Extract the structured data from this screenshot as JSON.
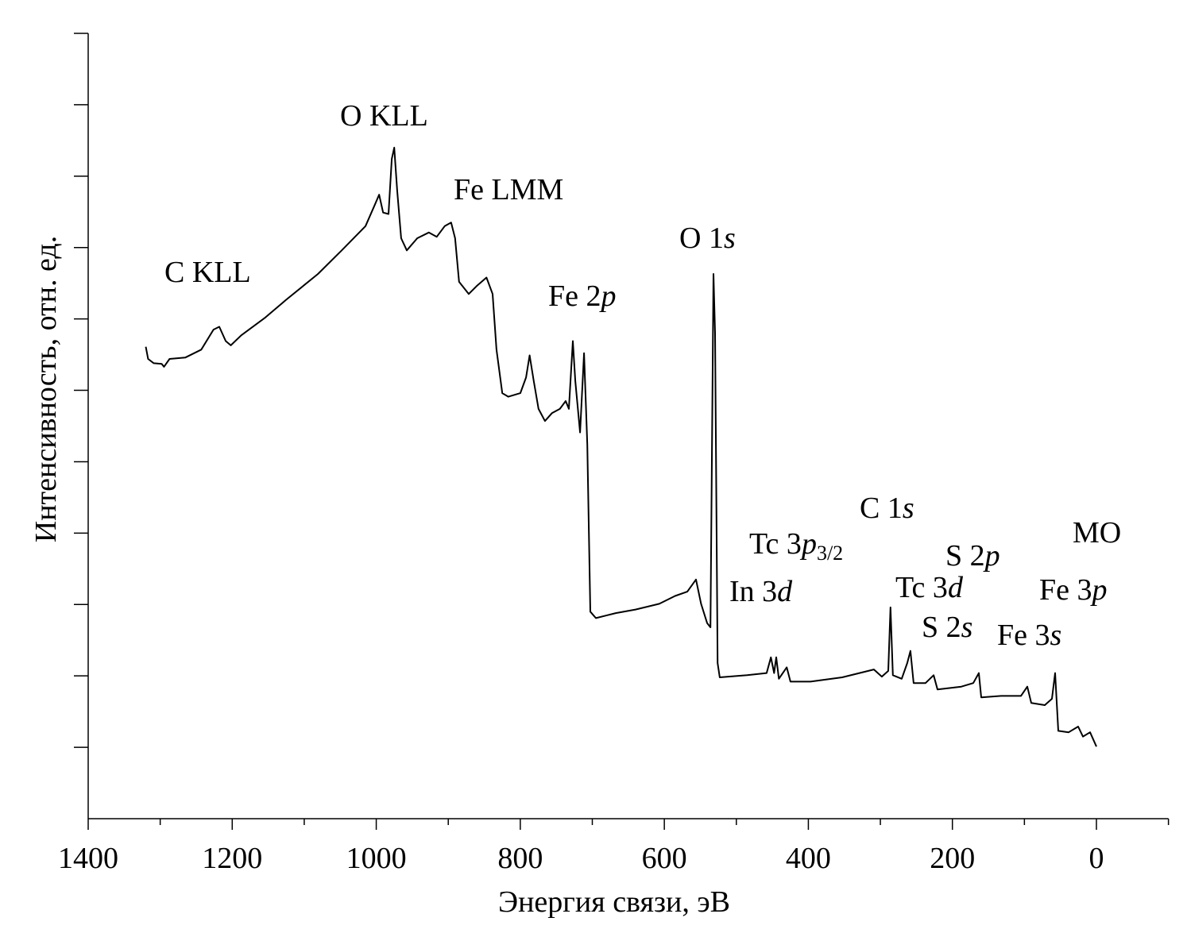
{
  "chart_data": {
    "type": "line",
    "x_label": "Энергия связи, эВ",
    "y_label": "Интенсивность, отн. ед.",
    "xlim": [
      1400,
      -100
    ],
    "xticks": [
      1400,
      1200,
      1000,
      800,
      600,
      400,
      200,
      0
    ],
    "x_minor_ticks": [
      1300,
      1100,
      900,
      700,
      500,
      300,
      100,
      -100
    ],
    "ylim": [
      0,
      11
    ],
    "y_minor_ticks": [
      1,
      2,
      3,
      4,
      5,
      6,
      7,
      8,
      9,
      10,
      11
    ],
    "series": [
      {
        "color": "#000000",
        "x": [
          1320,
          1316.8,
          1309,
          1298,
          1294.7,
          1287,
          1265,
          1243,
          1226,
          1218,
          1209,
          1202,
          1187.5,
          1154,
          1125,
          1081,
          1048,
          1015,
          1002,
          996,
          990.5,
          983,
          978.5,
          975,
          971,
          965.4,
          957.6,
          943,
          927,
          916,
          905,
          896,
          890.5,
          885,
          871.6,
          860.6,
          847,
          838.5,
          833,
          825,
          816.6,
          800,
          792,
          787,
          781.3,
          774.7,
          765.8,
          756,
          745,
          737,
          732.6,
          727,
          723.6,
          717,
          711.5,
          707,
          702.8,
          695,
          667.5,
          640,
          607,
          585,
          568,
          556,
          549,
          540.6,
          536,
          531.8,
          529.6,
          526,
          523,
          485,
          458,
          452,
          447.6,
          444.6,
          441,
          430,
          424.8,
          397,
          353,
          309,
          298,
          289,
          286,
          282.6,
          270.4,
          262.7,
          258.3,
          253.8,
          237.3,
          226,
          220.7,
          187.6,
          171,
          163.3,
          160,
          132.4,
          104.8,
          96,
          90.5,
          71.7,
          61.8,
          57.4,
          53,
          38.6,
          25.4,
          18.8,
          8.8,
          0
        ],
        "values": [
          6.61,
          6.44,
          6.38,
          6.37,
          6.33,
          6.44,
          6.46,
          6.57,
          6.85,
          6.89,
          6.69,
          6.63,
          6.77,
          7.02,
          7.27,
          7.63,
          7.96,
          8.3,
          8.6,
          8.74,
          8.49,
          8.47,
          9.24,
          9.4,
          8.8,
          8.13,
          7.96,
          8.13,
          8.21,
          8.15,
          8.3,
          8.35,
          8.13,
          7.52,
          7.35,
          7.46,
          7.58,
          7.35,
          6.57,
          5.96,
          5.91,
          5.96,
          6.18,
          6.49,
          6.13,
          5.74,
          5.57,
          5.68,
          5.74,
          5.85,
          5.74,
          6.69,
          6.13,
          5.41,
          6.52,
          5.24,
          2.9,
          2.81,
          2.88,
          2.93,
          3.01,
          3.12,
          3.18,
          3.35,
          3.01,
          2.74,
          2.68,
          7.63,
          6.8,
          2.18,
          1.98,
          2.01,
          2.04,
          2.26,
          2.04,
          2.26,
          1.96,
          2.12,
          1.92,
          1.92,
          1.98,
          2.09,
          1.99,
          2.07,
          2.96,
          2.01,
          1.96,
          2.18,
          2.35,
          1.9,
          1.9,
          2.01,
          1.81,
          1.85,
          1.9,
          2.04,
          1.7,
          1.72,
          1.72,
          1.85,
          1.62,
          1.59,
          1.68,
          2.04,
          1.23,
          1.21,
          1.29,
          1.15,
          1.21,
          1.01
        ]
      }
    ],
    "annotations": [
      [
        {
          "text": "C KLL"
        }
      ],
      [
        {
          "text": "O KLL"
        }
      ],
      [
        {
          "text": "Fe LMM"
        }
      ],
      [
        {
          "text": "O 1"
        },
        {
          "text": "s",
          "italic": true
        }
      ],
      [
        {
          "text": "Fe 2"
        },
        {
          "text": "p",
          "italic": true
        }
      ],
      [
        {
          "text": "C 1"
        },
        {
          "text": "s",
          "italic": true
        }
      ],
      [
        {
          "text": "Tc 3"
        },
        {
          "text": "p",
          "italic": true
        },
        {
          "text": "3/2",
          "subscript": true
        }
      ],
      [
        {
          "text": "S 2"
        },
        {
          "text": "p",
          "italic": true
        }
      ],
      [
        {
          "text": "MO"
        }
      ],
      [
        {
          "text": "In 3"
        },
        {
          "text": "d",
          "italic": true
        }
      ],
      [
        {
          "text": "Tc 3"
        },
        {
          "text": "d",
          "italic": true
        }
      ],
      [
        {
          "text": "Fe 3"
        },
        {
          "text": "p",
          "italic": true
        }
      ],
      [
        {
          "text": "S 2"
        },
        {
          "text": "s",
          "italic": true
        }
      ],
      [
        {
          "text": "Fe 3"
        },
        {
          "text": "s",
          "italic": true
        }
      ]
    ]
  }
}
